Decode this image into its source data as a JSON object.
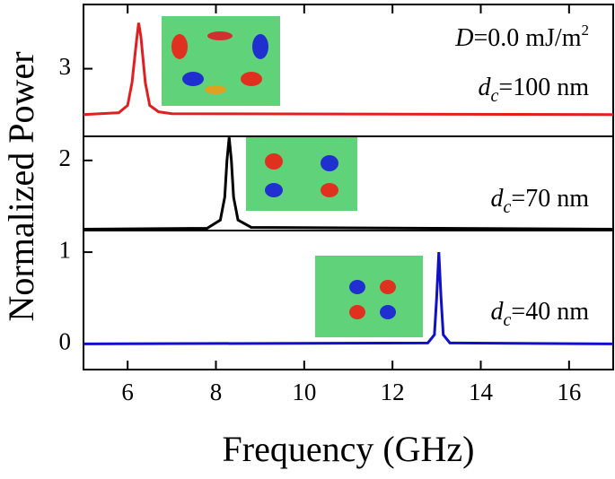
{
  "chart_data": {
    "type": "line",
    "xlabel": "Frequency (GHz)",
    "ylabel": "Normalized Power",
    "xlim": [
      5,
      17
    ],
    "xticks": [
      6,
      8,
      10,
      12,
      14,
      16
    ],
    "ylim": [
      -0.28,
      3.7
    ],
    "yticks": [
      0,
      1,
      2,
      3
    ],
    "series": [
      {
        "color": "#e02020",
        "x": [
          5,
          5.8,
          6.0,
          6.1,
          6.2,
          6.25,
          6.3,
          6.4,
          6.5,
          6.7,
          7,
          17
        ],
        "values": [
          2.5,
          2.52,
          2.6,
          2.85,
          3.3,
          3.5,
          3.35,
          2.85,
          2.6,
          2.53,
          2.51,
          2.5
        ]
      },
      {
        "color": "#000000",
        "x": [
          5,
          7.8,
          8.1,
          8.2,
          8.25,
          8.3,
          8.35,
          8.4,
          8.5,
          8.8,
          17
        ],
        "values": [
          1.25,
          1.26,
          1.35,
          1.6,
          2.0,
          2.25,
          2.0,
          1.6,
          1.35,
          1.27,
          1.25
        ]
      },
      {
        "color": "#1010c8",
        "x": [
          5,
          12.8,
          12.95,
          13.0,
          13.05,
          13.1,
          13.15,
          13.3,
          17
        ],
        "values": [
          0,
          0.01,
          0.1,
          0.5,
          1.0,
          0.5,
          0.1,
          0.01,
          0
        ]
      }
    ],
    "annotations": [
      {
        "italic": "D",
        "text": "=0.0 mJ/m",
        "sup": "2"
      },
      {
        "italic": "d",
        "sub": "c",
        "text": "=100 nm"
      },
      {
        "italic": "d",
        "sub": "c",
        "text": "=70 nm"
      },
      {
        "italic": "d",
        "sub": "c",
        "text": "=40 nm"
      }
    ]
  }
}
